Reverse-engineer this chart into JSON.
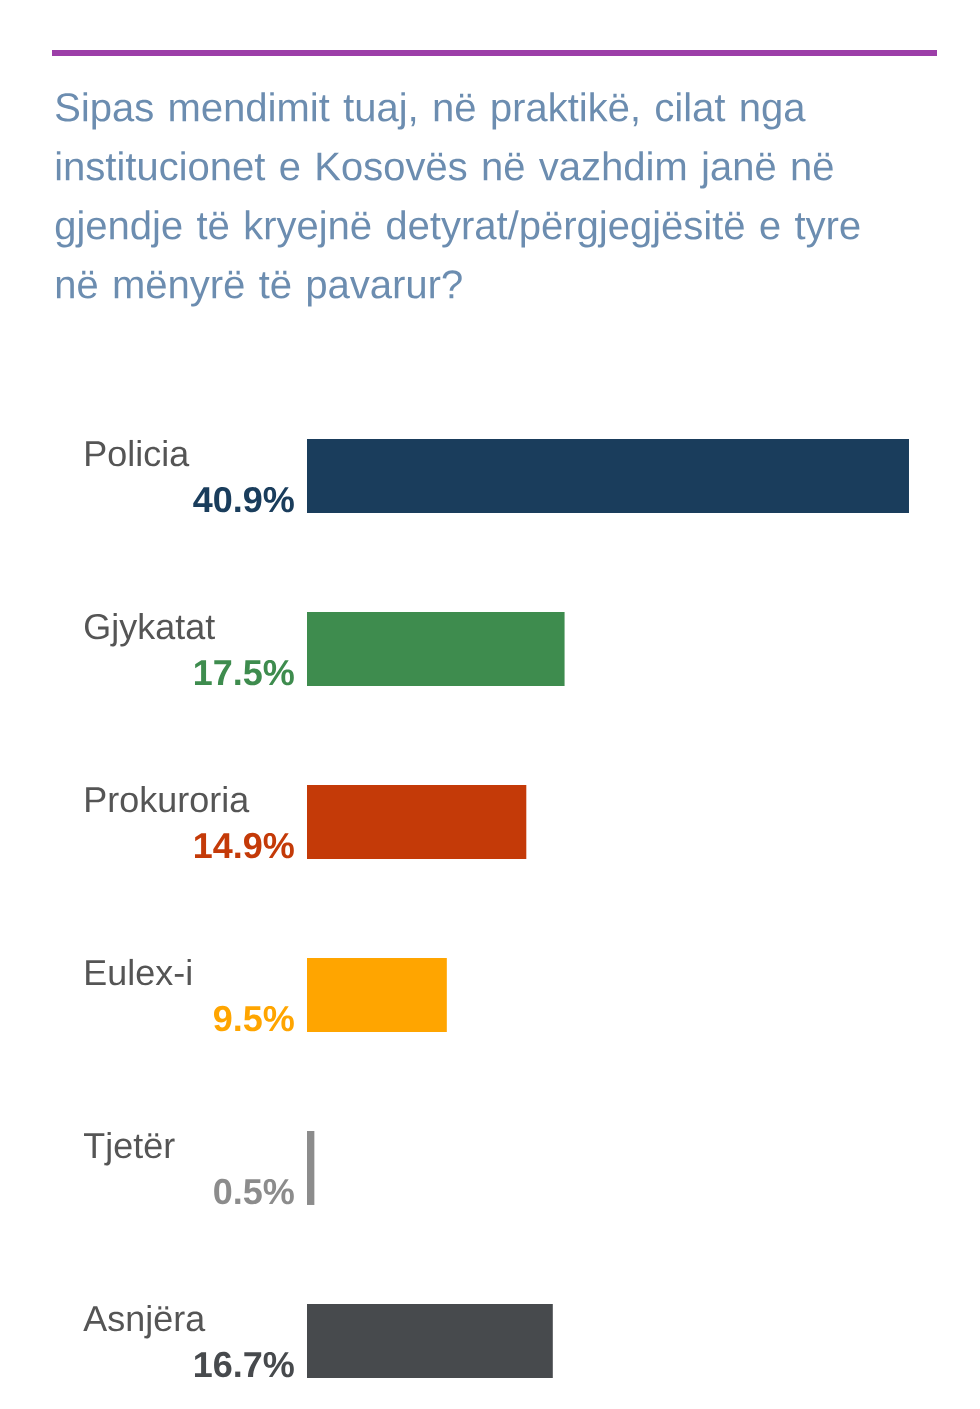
{
  "chart_data": {
    "type": "bar",
    "orientation": "horizontal",
    "title": "Sipas mendimit tuaj, në praktikë, cilat nga institucionet e Kosovës në vazhdim janë në gjendje të kryejnë detyrat/përgjegjësitë e tyre në mënyrë të pavarur?",
    "categories": [
      "Policia",
      "Gjykatat",
      "Prokuroria",
      "Eulex-i",
      "Tjetër",
      "Asnjëra"
    ],
    "values": [
      40.9,
      17.5,
      14.9,
      9.5,
      0.5,
      16.7
    ],
    "value_labels": [
      "40.9%",
      "17.5%",
      "14.9%",
      "9.5%",
      "0.5%",
      "16.7%"
    ],
    "colors": [
      "#1a3d5c",
      "#3e8c4e",
      "#c43a08",
      "#ffa500",
      "#8c8c8c",
      "#474a4d"
    ]
  }
}
